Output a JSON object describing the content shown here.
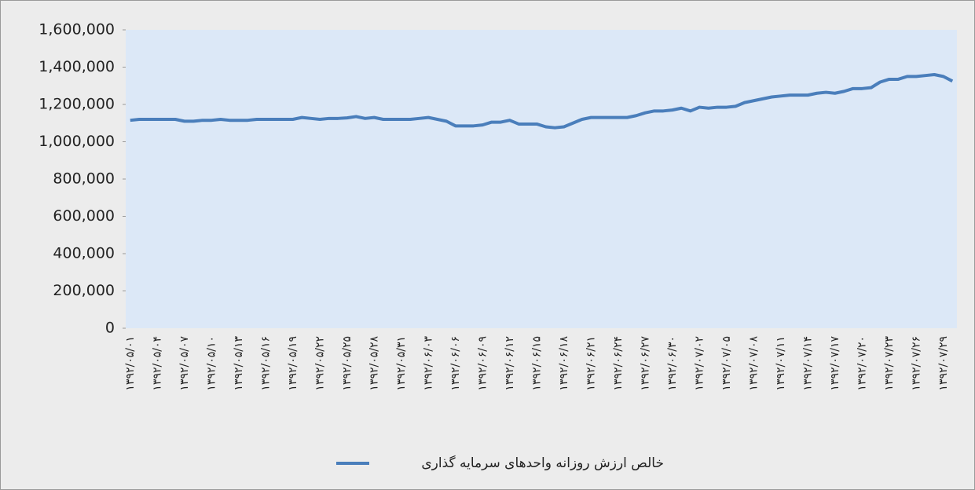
{
  "chart_data": {
    "type": "line",
    "categories": [
      "۱۳۹۲/۰۵/۰۱",
      null,
      null,
      "۱۳۹۲/۰۵/۰۴",
      null,
      null,
      "۱۳۹۲/۰۵/۰۷",
      null,
      null,
      "۱۳۹۲/۰۵/۱۰",
      null,
      null,
      "۱۳۹۲/۰۵/۱۳",
      null,
      null,
      "۱۳۹۲/۰۵/۱۶",
      null,
      null,
      "۱۳۹۲/۰۵/۱۹",
      null,
      null,
      "۱۳۹۲/۰۵/۲۲",
      null,
      null,
      "۱۳۹۲/۰۵/۲۵",
      null,
      null,
      "۱۳۹۲/۰۵/۲۸",
      null,
      null,
      "۱۳۹۲/۰۵/۳۱",
      null,
      null,
      "۱۳۹۲/۰۶/۰۳",
      null,
      null,
      "۱۳۹۲/۰۶/۰۶",
      null,
      null,
      "۱۳۹۲/۰۶/۰۹",
      null,
      null,
      "۱۳۹۲/۰۶/۱۲",
      null,
      null,
      "۱۳۹۲/۰۶/۱۵",
      null,
      null,
      "۱۳۹۲/۰۶/۱۸",
      null,
      null,
      "۱۳۹۲/۰۶/۲۱",
      null,
      null,
      "۱۳۹۲/۰۶/۲۴",
      null,
      null,
      "۱۳۹۲/۰۶/۲۷",
      null,
      null,
      "۱۳۹۲/۰۶/۳۰",
      null,
      null,
      "۱۳۹۲/۰۷/۰۲",
      null,
      null,
      "۱۳۹۲/۰۷/۰۵",
      null,
      null,
      "۱۳۹۲/۰۷/۰۸",
      null,
      null,
      "۱۳۹۲/۰۷/۱۱",
      null,
      null,
      "۱۳۹۲/۰۷/۱۴",
      null,
      null,
      "۱۳۹۲/۰۷/۱۷",
      null,
      null,
      "۱۳۹۲/۰۷/۲۰",
      null,
      null,
      "۱۳۹۲/۰۷/۲۳",
      null,
      null,
      "۱۳۹۲/۰۷/۲۶",
      null,
      null,
      "۱۳۹۲/۰۷/۲۹",
      null
    ],
    "series": [
      {
        "name": "خالص ارزش روزانه واحدهای سرمایه گذاری",
        "color": "#4a7ebb",
        "values": [
          1115000,
          1120000,
          1120000,
          1120000,
          1120000,
          1120000,
          1110000,
          1110000,
          1115000,
          1115000,
          1120000,
          1115000,
          1115000,
          1115000,
          1120000,
          1120000,
          1120000,
          1120000,
          1120000,
          1130000,
          1125000,
          1120000,
          1125000,
          1125000,
          1128000,
          1135000,
          1125000,
          1130000,
          1120000,
          1120000,
          1120000,
          1120000,
          1125000,
          1130000,
          1120000,
          1110000,
          1085000,
          1085000,
          1085000,
          1090000,
          1105000,
          1105000,
          1115000,
          1095000,
          1095000,
          1095000,
          1080000,
          1075000,
          1080000,
          1100000,
          1120000,
          1130000,
          1130000,
          1130000,
          1130000,
          1130000,
          1140000,
          1155000,
          1165000,
          1165000,
          1170000,
          1180000,
          1165000,
          1185000,
          1180000,
          1185000,
          1185000,
          1190000,
          1210000,
          1220000,
          1230000,
          1240000,
          1245000,
          1250000,
          1250000,
          1250000,
          1260000,
          1265000,
          1260000,
          1270000,
          1285000,
          1285000,
          1290000,
          1320000,
          1335000,
          1335000,
          1350000,
          1350000,
          1355000,
          1360000,
          1350000,
          1325000
        ]
      }
    ],
    "ylim": [
      0,
      1600000
    ],
    "yticks": [
      0,
      {
        "value": 200000,
        "label": "200,000"
      },
      {
        "value": 400000,
        "label": "400,000"
      },
      {
        "value": 600000,
        "label": "600,000"
      },
      {
        "value": 800000,
        "label": "800,000"
      },
      {
        "value": 1000000,
        "label": "1,000,000"
      },
      {
        "value": 1200000,
        "label": "1,200,000"
      },
      {
        "value": 1400000,
        "label": "1,400,000"
      },
      {
        "value": 1600000,
        "label": "1,600,000"
      }
    ],
    "legend": "bottom"
  }
}
